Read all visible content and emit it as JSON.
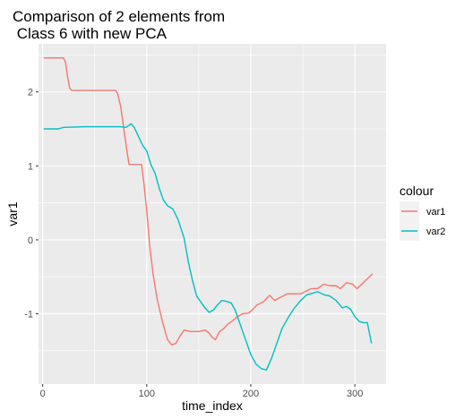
{
  "chart_data": {
    "type": "line",
    "title_lines": [
      "Comparison of 2 elements from",
      " Class 6 with new PCA"
    ],
    "xlabel": "time_index",
    "ylabel": "var1",
    "xlim": [
      -4,
      330
    ],
    "ylim": [
      -1.95,
      2.65
    ],
    "x_ticks": [
      0,
      100,
      200,
      300
    ],
    "x_tick_labels": [
      "0",
      "100",
      "200",
      "300"
    ],
    "y_ticks": [
      -1,
      0,
      1,
      2
    ],
    "y_tick_labels": [
      "-1",
      "0",
      "1",
      "2"
    ],
    "grid": true,
    "legend": {
      "title": "colour",
      "position": "right",
      "entries": [
        "var1",
        "var2"
      ]
    },
    "colors": {
      "var1": "#F8766D",
      "var2": "#00BFC4",
      "panel": "#EBEBEB",
      "grid": "#FFFFFF"
    },
    "series": [
      {
        "name": "var1",
        "points": [
          [
            1,
            2.46
          ],
          [
            10,
            2.46
          ],
          [
            20,
            2.46
          ],
          [
            22,
            2.4
          ],
          [
            24,
            2.2
          ],
          [
            26,
            2.05
          ],
          [
            28,
            2.02
          ],
          [
            40,
            2.02
          ],
          [
            55,
            2.02
          ],
          [
            70,
            2.02
          ],
          [
            72,
            1.98
          ],
          [
            75,
            1.8
          ],
          [
            78,
            1.5
          ],
          [
            81,
            1.2
          ],
          [
            83,
            1.02
          ],
          [
            95,
            1.02
          ],
          [
            97,
            0.8
          ],
          [
            100,
            0.4
          ],
          [
            103,
            -0.1
          ],
          [
            106,
            -0.45
          ],
          [
            110,
            -0.8
          ],
          [
            115,
            -1.1
          ],
          [
            120,
            -1.35
          ],
          [
            124,
            -1.42
          ],
          [
            128,
            -1.4
          ],
          [
            132,
            -1.3
          ],
          [
            136,
            -1.22
          ],
          [
            142,
            -1.24
          ],
          [
            150,
            -1.24
          ],
          [
            156,
            -1.22
          ],
          [
            160,
            -1.26
          ],
          [
            163,
            -1.32
          ],
          [
            166,
            -1.35
          ],
          [
            170,
            -1.24
          ],
          [
            174,
            -1.2
          ],
          [
            178,
            -1.14
          ],
          [
            182,
            -1.1
          ],
          [
            186,
            -1.05
          ],
          [
            192,
            -1.0
          ],
          [
            198,
            -0.99
          ],
          [
            202,
            -0.94
          ],
          [
            206,
            -0.88
          ],
          [
            212,
            -0.84
          ],
          [
            218,
            -0.75
          ],
          [
            223,
            -0.82
          ],
          [
            228,
            -0.78
          ],
          [
            235,
            -0.73
          ],
          [
            248,
            -0.73
          ],
          [
            252,
            -0.7
          ],
          [
            258,
            -0.66
          ],
          [
            264,
            -0.66
          ],
          [
            270,
            -0.6
          ],
          [
            276,
            -0.62
          ],
          [
            282,
            -0.62
          ],
          [
            286,
            -0.66
          ],
          [
            292,
            -0.58
          ],
          [
            298,
            -0.6
          ],
          [
            302,
            -0.66
          ],
          [
            308,
            -0.58
          ],
          [
            314,
            -0.5
          ],
          [
            317,
            -0.46
          ]
        ]
      },
      {
        "name": "var2",
        "points": [
          [
            1,
            1.5
          ],
          [
            10,
            1.5
          ],
          [
            15,
            1.5
          ],
          [
            20,
            1.52
          ],
          [
            40,
            1.53
          ],
          [
            60,
            1.53
          ],
          [
            75,
            1.53
          ],
          [
            80,
            1.52
          ],
          [
            85,
            1.57
          ],
          [
            88,
            1.52
          ],
          [
            92,
            1.4
          ],
          [
            96,
            1.28
          ],
          [
            100,
            1.2
          ],
          [
            104,
            1.02
          ],
          [
            108,
            0.9
          ],
          [
            112,
            0.7
          ],
          [
            116,
            0.54
          ],
          [
            120,
            0.46
          ],
          [
            125,
            0.42
          ],
          [
            130,
            0.28
          ],
          [
            136,
            0.02
          ],
          [
            140,
            -0.3
          ],
          [
            144,
            -0.55
          ],
          [
            148,
            -0.76
          ],
          [
            152,
            -0.84
          ],
          [
            156,
            -0.92
          ],
          [
            160,
            -0.98
          ],
          [
            164,
            -0.95
          ],
          [
            168,
            -0.88
          ],
          [
            172,
            -0.82
          ],
          [
            176,
            -0.83
          ],
          [
            181,
            -0.85
          ],
          [
            185,
            -0.95
          ],
          [
            190,
            -1.15
          ],
          [
            195,
            -1.35
          ],
          [
            200,
            -1.55
          ],
          [
            205,
            -1.68
          ],
          [
            210,
            -1.74
          ],
          [
            215,
            -1.76
          ],
          [
            220,
            -1.6
          ],
          [
            225,
            -1.4
          ],
          [
            230,
            -1.2
          ],
          [
            236,
            -1.05
          ],
          [
            242,
            -0.92
          ],
          [
            248,
            -0.82
          ],
          [
            254,
            -0.74
          ],
          [
            260,
            -0.72
          ],
          [
            264,
            -0.7
          ],
          [
            270,
            -0.74
          ],
          [
            276,
            -0.76
          ],
          [
            282,
            -0.82
          ],
          [
            288,
            -0.92
          ],
          [
            292,
            -0.9
          ],
          [
            296,
            -0.94
          ],
          [
            300,
            -1.04
          ],
          [
            304,
            -1.1
          ],
          [
            308,
            -1.12
          ],
          [
            312,
            -1.12
          ],
          [
            316,
            -1.4
          ]
        ]
      }
    ]
  }
}
